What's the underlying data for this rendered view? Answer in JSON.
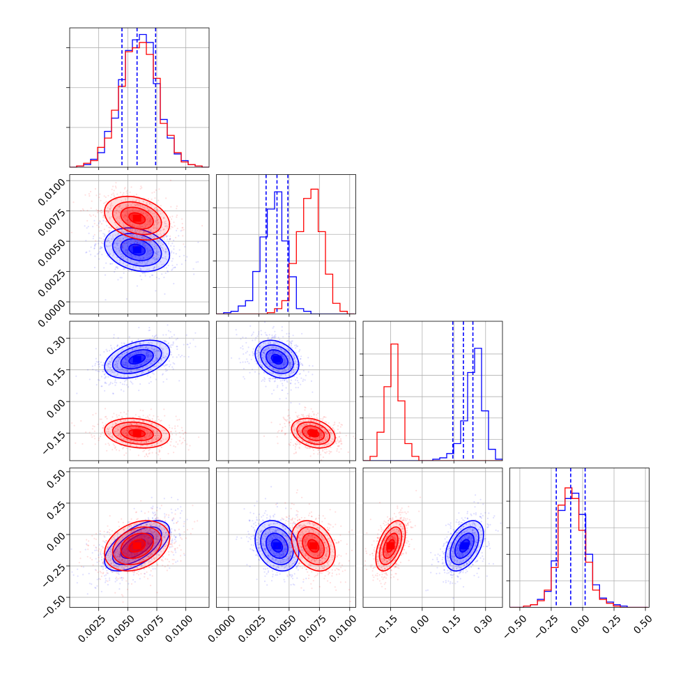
{
  "chart_data": {
    "type": "corner",
    "parameters": 4,
    "grid": true,
    "series": [
      {
        "name": "",
        "color": "#0000ff"
      },
      {
        "name": "",
        "color": "#ff0000"
      }
    ],
    "axes": [
      {
        "range": [
          0.0,
          0.012
        ],
        "ticks": [
          0.0025,
          0.005,
          0.0075,
          0.01
        ],
        "tick_labels": [
          "0.0025",
          "0.0050",
          "0.0075",
          "0.0100"
        ]
      },
      {
        "range": [
          -0.001,
          0.0105
        ],
        "ticks": [
          0.0,
          0.0025,
          0.005,
          0.0075,
          0.01
        ],
        "tick_labels": [
          "0.0000",
          "0.0025",
          "0.0050",
          "0.0075",
          "0.0100"
        ]
      },
      {
        "range": [
          -0.28,
          0.38
        ],
        "ticks": [
          -0.15,
          0.0,
          0.15,
          0.3
        ],
        "tick_labels": [
          "−0.15",
          "0.00",
          "0.15",
          "0.30"
        ]
      },
      {
        "range": [
          -0.58,
          0.53
        ],
        "ticks": [
          -0.5,
          -0.25,
          0.0,
          0.25,
          0.5
        ],
        "tick_labels": [
          "−0.50",
          "−0.25",
          "0.00",
          "0.25",
          "0.50"
        ]
      }
    ],
    "histograms": [
      {
        "param": 0,
        "ymax": 1.05,
        "yticks": [
          0.3,
          0.6,
          0.9
        ],
        "edges": [
          0.0,
          0.0006,
          0.0012,
          0.0018,
          0.0024,
          0.003,
          0.0036,
          0.0042,
          0.0048,
          0.0054,
          0.006,
          0.0066,
          0.0072,
          0.0078,
          0.0084,
          0.009,
          0.0096,
          0.0102,
          0.0108,
          0.0114,
          0.012
        ],
        "blue": [
          0.0,
          0.01,
          0.02,
          0.06,
          0.11,
          0.27,
          0.37,
          0.66,
          0.88,
          0.96,
          1.0,
          0.94,
          0.63,
          0.36,
          0.22,
          0.1,
          0.05,
          0.02,
          0.01,
          0.0
        ],
        "red": [
          0.0,
          0.01,
          0.03,
          0.05,
          0.15,
          0.22,
          0.43,
          0.61,
          0.87,
          0.9,
          0.94,
          0.85,
          0.67,
          0.33,
          0.24,
          0.11,
          0.04,
          0.02,
          0.01,
          0.0
        ],
        "quantiles": [
          0.0045,
          0.0058,
          0.0074
        ]
      },
      {
        "param": 1,
        "ymax": 1.05,
        "yticks": [
          0.2,
          0.4,
          0.6,
          0.8
        ],
        "edges": [
          -0.001,
          -0.0004,
          0.0002,
          0.0008,
          0.0014,
          0.002,
          0.0026,
          0.0032,
          0.0038,
          0.0044,
          0.005,
          0.0056,
          0.0062,
          0.0068,
          0.0074,
          0.008,
          0.0086,
          0.0092,
          0.0098,
          0.0104
        ],
        "blue": [
          0.0,
          0.01,
          0.02,
          0.06,
          0.1,
          0.32,
          0.58,
          0.79,
          0.92,
          0.55,
          0.28,
          0.04,
          0.02,
          0.0,
          0.0,
          0.0,
          0.0,
          0.0,
          0.0
        ],
        "red": [
          0.0,
          0.0,
          0.0,
          0.0,
          0.0,
          0.0,
          0.0,
          0.01,
          0.04,
          0.1,
          0.38,
          0.62,
          0.87,
          0.94,
          0.62,
          0.3,
          0.08,
          0.02,
          0.0
        ],
        "quantiles": [
          0.0031,
          0.004,
          0.0049
        ]
      },
      {
        "param": 2,
        "ymax": 0.98,
        "yticks": [
          0.15,
          0.3,
          0.45,
          0.6,
          0.75
        ],
        "edges": [
          -0.28,
          -0.247,
          -0.214,
          -0.181,
          -0.148,
          -0.115,
          -0.082,
          -0.049,
          -0.016,
          0.017,
          0.05,
          0.083,
          0.116,
          0.149,
          0.182,
          0.215,
          0.248,
          0.281,
          0.314,
          0.347,
          0.38
        ],
        "blue": [
          0.0,
          0.0,
          0.0,
          0.0,
          0.0,
          0.0,
          0.0,
          0.0,
          0.0,
          0.0,
          0.01,
          0.02,
          0.05,
          0.12,
          0.28,
          0.62,
          0.79,
          0.35,
          0.08,
          0.01
        ],
        "red": [
          0.0,
          0.03,
          0.2,
          0.52,
          0.82,
          0.42,
          0.12,
          0.03,
          0.0,
          0.0,
          0.0,
          0.0,
          0.0,
          0.0,
          0.0,
          0.0,
          0.0,
          0.0,
          0.0,
          0.0
        ],
        "quantiles": [
          0.145,
          0.195,
          0.24
        ]
      },
      {
        "param": 3,
        "ymax": 1.05,
        "yticks": [
          0.2,
          0.4,
          0.6,
          0.8
        ],
        "edges": [
          -0.58,
          -0.525,
          -0.47,
          -0.415,
          -0.36,
          -0.305,
          -0.25,
          -0.195,
          -0.14,
          -0.085,
          -0.03,
          0.025,
          0.08,
          0.135,
          0.19,
          0.245,
          0.3,
          0.355,
          0.41,
          0.465,
          0.52
        ],
        "blue": [
          0.0,
          0.0,
          0.01,
          0.02,
          0.06,
          0.12,
          0.35,
          0.73,
          0.82,
          0.86,
          0.7,
          0.4,
          0.17,
          0.07,
          0.04,
          0.02,
          0.01,
          0.0,
          0.0,
          0.0
        ],
        "red": [
          0.0,
          0.0,
          0.01,
          0.02,
          0.05,
          0.13,
          0.3,
          0.77,
          0.9,
          0.82,
          0.58,
          0.34,
          0.13,
          0.06,
          0.03,
          0.01,
          0.0,
          0.0,
          0.0,
          0.0
        ],
        "quantiles": [
          -0.21,
          -0.095,
          0.02
        ]
      }
    ],
    "correlations": [
      {
        "x": 0,
        "y": 1,
        "blue": {
          "center": [
            0.0058,
            0.0043
          ],
          "sd": [
            0.0014,
            0.0009
          ],
          "rho": -0.25
        },
        "red": {
          "center": [
            0.0058,
            0.0069
          ],
          "sd": [
            0.0014,
            0.0009
          ],
          "rho": -0.3
        }
      },
      {
        "x": 0,
        "y": 2,
        "blue": {
          "center": [
            0.0058,
            0.2
          ],
          "sd": [
            0.0014,
            0.045
          ],
          "rho": 0.4
        },
        "red": {
          "center": [
            0.0058,
            -0.15
          ],
          "sd": [
            0.0014,
            0.035
          ],
          "rho": -0.2
        }
      },
      {
        "x": 1,
        "y": 2,
        "blue": {
          "center": [
            0.004,
            0.2
          ],
          "sd": [
            0.0009,
            0.045
          ],
          "rho": -0.3
        },
        "red": {
          "center": [
            0.007,
            -0.15
          ],
          "sd": [
            0.0009,
            0.035
          ],
          "rho": -0.3
        }
      },
      {
        "x": 0,
        "y": 3,
        "blue": {
          "center": [
            0.0058,
            -0.09
          ],
          "sd": [
            0.0014,
            0.1
          ],
          "rho": 0.6
        },
        "red": {
          "center": [
            0.0058,
            -0.09
          ],
          "sd": [
            0.0014,
            0.1
          ],
          "rho": 0.3
        }
      },
      {
        "x": 1,
        "y": 3,
        "blue": {
          "center": [
            0.004,
            -0.09
          ],
          "sd": [
            0.0009,
            0.1
          ],
          "rho": -0.25
        },
        "red": {
          "center": [
            0.007,
            -0.09
          ],
          "sd": [
            0.0009,
            0.1
          ],
          "rho": -0.3
        }
      },
      {
        "x": 2,
        "y": 3,
        "blue": {
          "center": [
            0.2,
            -0.09
          ],
          "sd": [
            0.045,
            0.1
          ],
          "rho": 0.45
        },
        "red": {
          "center": [
            -0.15,
            -0.09
          ],
          "sd": [
            0.035,
            0.1
          ],
          "rho": 0.5
        }
      }
    ],
    "contour_levels_sigma": [
      0.5,
      1.0,
      1.5,
      2.0
    ]
  }
}
